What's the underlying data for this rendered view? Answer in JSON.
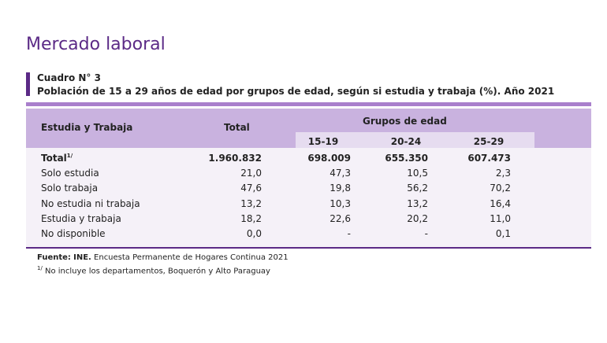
{
  "header": {
    "title": "Mercado laboral",
    "table_number": "Cuadro N° 3",
    "subtitle": "Población de 15 a 29 años de edad por grupos de edad, según si estudia y trabaja (%). Año 2021"
  },
  "table": {
    "columns": {
      "category": "Estudia y Trabaja",
      "total": "Total",
      "group": "Grupos de edad",
      "ages": [
        "15-19",
        "20-24",
        "25-29"
      ]
    },
    "rows": [
      {
        "label": "Total",
        "note": "1/",
        "values": [
          "1.960.832",
          "698.009",
          "655.350",
          "607.473"
        ]
      },
      {
        "label": "Solo estudia",
        "values": [
          "21,0",
          "47,3",
          "10,5",
          "2,3"
        ]
      },
      {
        "label": "Solo trabaja",
        "values": [
          "47,6",
          "19,8",
          "56,2",
          "70,2"
        ]
      },
      {
        "label": "No estudia ni trabaja",
        "values": [
          "13,2",
          "10,3",
          "13,2",
          "16,4"
        ]
      },
      {
        "label": "Estudia y trabaja",
        "values": [
          "18,2",
          "22,6",
          "20,2",
          "11,0"
        ]
      },
      {
        "label": "No disponible",
        "values": [
          "0,0",
          "-",
          "-",
          "0,1"
        ]
      }
    ]
  },
  "source": {
    "label": "Fuente:",
    "org": "INE.",
    "text": "Encuesta Permanente de Hogares Continua 2021"
  },
  "footnote": {
    "mark": "1/",
    "text": "No incluye los departamentos, Boquerón y Alto Paraguay"
  }
}
